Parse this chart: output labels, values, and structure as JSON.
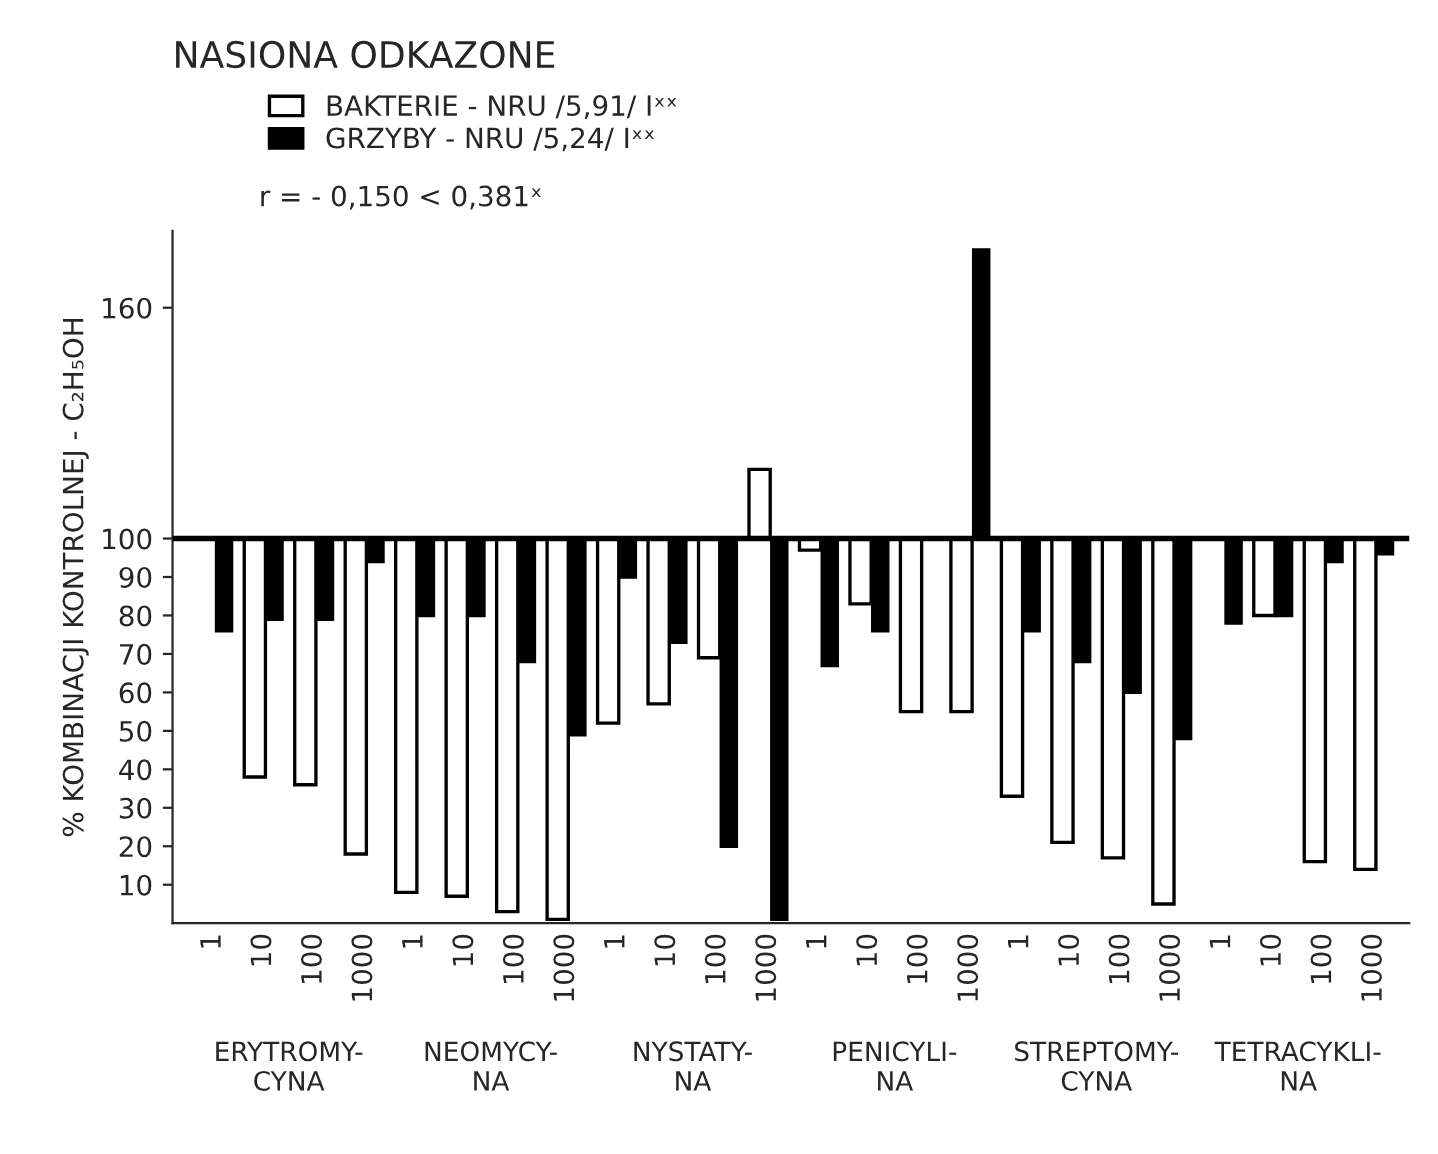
{
  "chart_data": {
    "type": "bar",
    "title": "NASIONA ODKAZONE",
    "ylabel": "% KOMBINACJI KONTROLNEJ - C₂H₅OH",
    "categories": [
      "1",
      "10",
      "100",
      "1000",
      "1",
      "10",
      "100",
      "1000",
      "1",
      "10",
      "100",
      "1000",
      "1",
      "10",
      "100",
      "1000",
      "1",
      "10",
      "100",
      "1000",
      "1",
      "10",
      "100",
      "1000"
    ],
    "series": [
      {
        "name": "BAKTERIE - NRU /5,91/ Iˣˣ",
        "color": "#ffffff",
        "base": [
          null,
          38,
          36,
          18,
          8,
          7,
          3,
          1,
          52,
          57,
          69,
          100,
          97,
          83,
          55,
          55,
          33,
          21,
          17,
          5,
          null,
          80,
          16,
          14
        ],
        "values": [
          null,
          62,
          64,
          82,
          92,
          93,
          97,
          99,
          48,
          43,
          31,
          18,
          3,
          17,
          45,
          45,
          67,
          79,
          83,
          95,
          null,
          20,
          84,
          86
        ]
      },
      {
        "name": "GRZYBY - NRU /5,24/ Iˣˣ",
        "color": "#000000",
        "base": [
          76,
          79,
          79,
          94,
          80,
          80,
          68,
          49,
          90,
          73,
          20,
          1,
          67,
          76,
          null,
          100,
          76,
          68,
          60,
          48,
          78,
          80,
          94,
          96
        ],
        "values": [
          24,
          21,
          21,
          6,
          20,
          20,
          32,
          51,
          10,
          27,
          80,
          99,
          33,
          24,
          null,
          75,
          24,
          32,
          40,
          52,
          22,
          20,
          6,
          4
        ]
      }
    ],
    "ylim": [
      0,
      180
    ],
    "yticks": [
      10,
      20,
      30,
      40,
      50,
      60,
      70,
      80,
      90,
      100,
      160
    ],
    "ref_lines": [
      {
        "axis": "y",
        "value": 100
      }
    ],
    "legend": "top left",
    "annotations": [
      "r = - 0,150 < 0,381ˣ",
      "ERYTROMY-\nCYNA",
      "NEOMYCY-\nNA",
      "NYSTATY-\nNA",
      "PENICYLI-\nNA",
      "STREPTOMY-\nCYNA",
      "TETRACYKLI-\nNA"
    ]
  }
}
